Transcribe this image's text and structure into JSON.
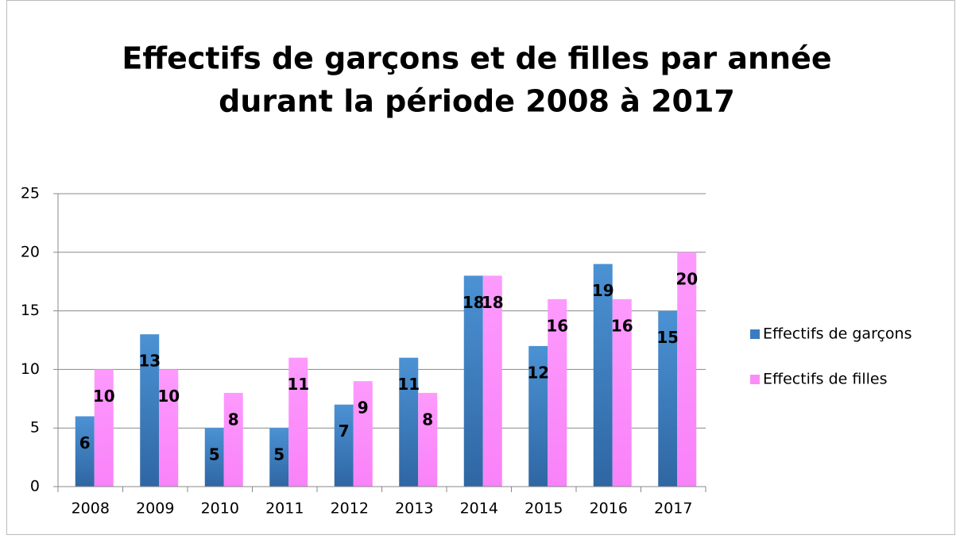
{
  "chart_data": {
    "type": "bar",
    "title": [
      "Effectifs de garçons et de filles par année",
      "durant la période 2008 à 2017"
    ],
    "categories": [
      "2008",
      "2009",
      "2010",
      "2011",
      "2012",
      "2013",
      "2014",
      "2015",
      "2016",
      "2017"
    ],
    "series": [
      {
        "name": "Effectifs de garçons",
        "color": "#3a7cc0",
        "values": [
          6,
          13,
          5,
          5,
          7,
          11,
          18,
          12,
          19,
          15
        ]
      },
      {
        "name": "Effectifs de filles",
        "color": "#fb8cfb",
        "values": [
          10,
          10,
          8,
          11,
          9,
          8,
          18,
          16,
          16,
          20
        ]
      }
    ],
    "ylim": [
      0,
      25
    ],
    "yticks": [
      0,
      5,
      10,
      15,
      20,
      25
    ],
    "grid": true,
    "legend": "right"
  }
}
